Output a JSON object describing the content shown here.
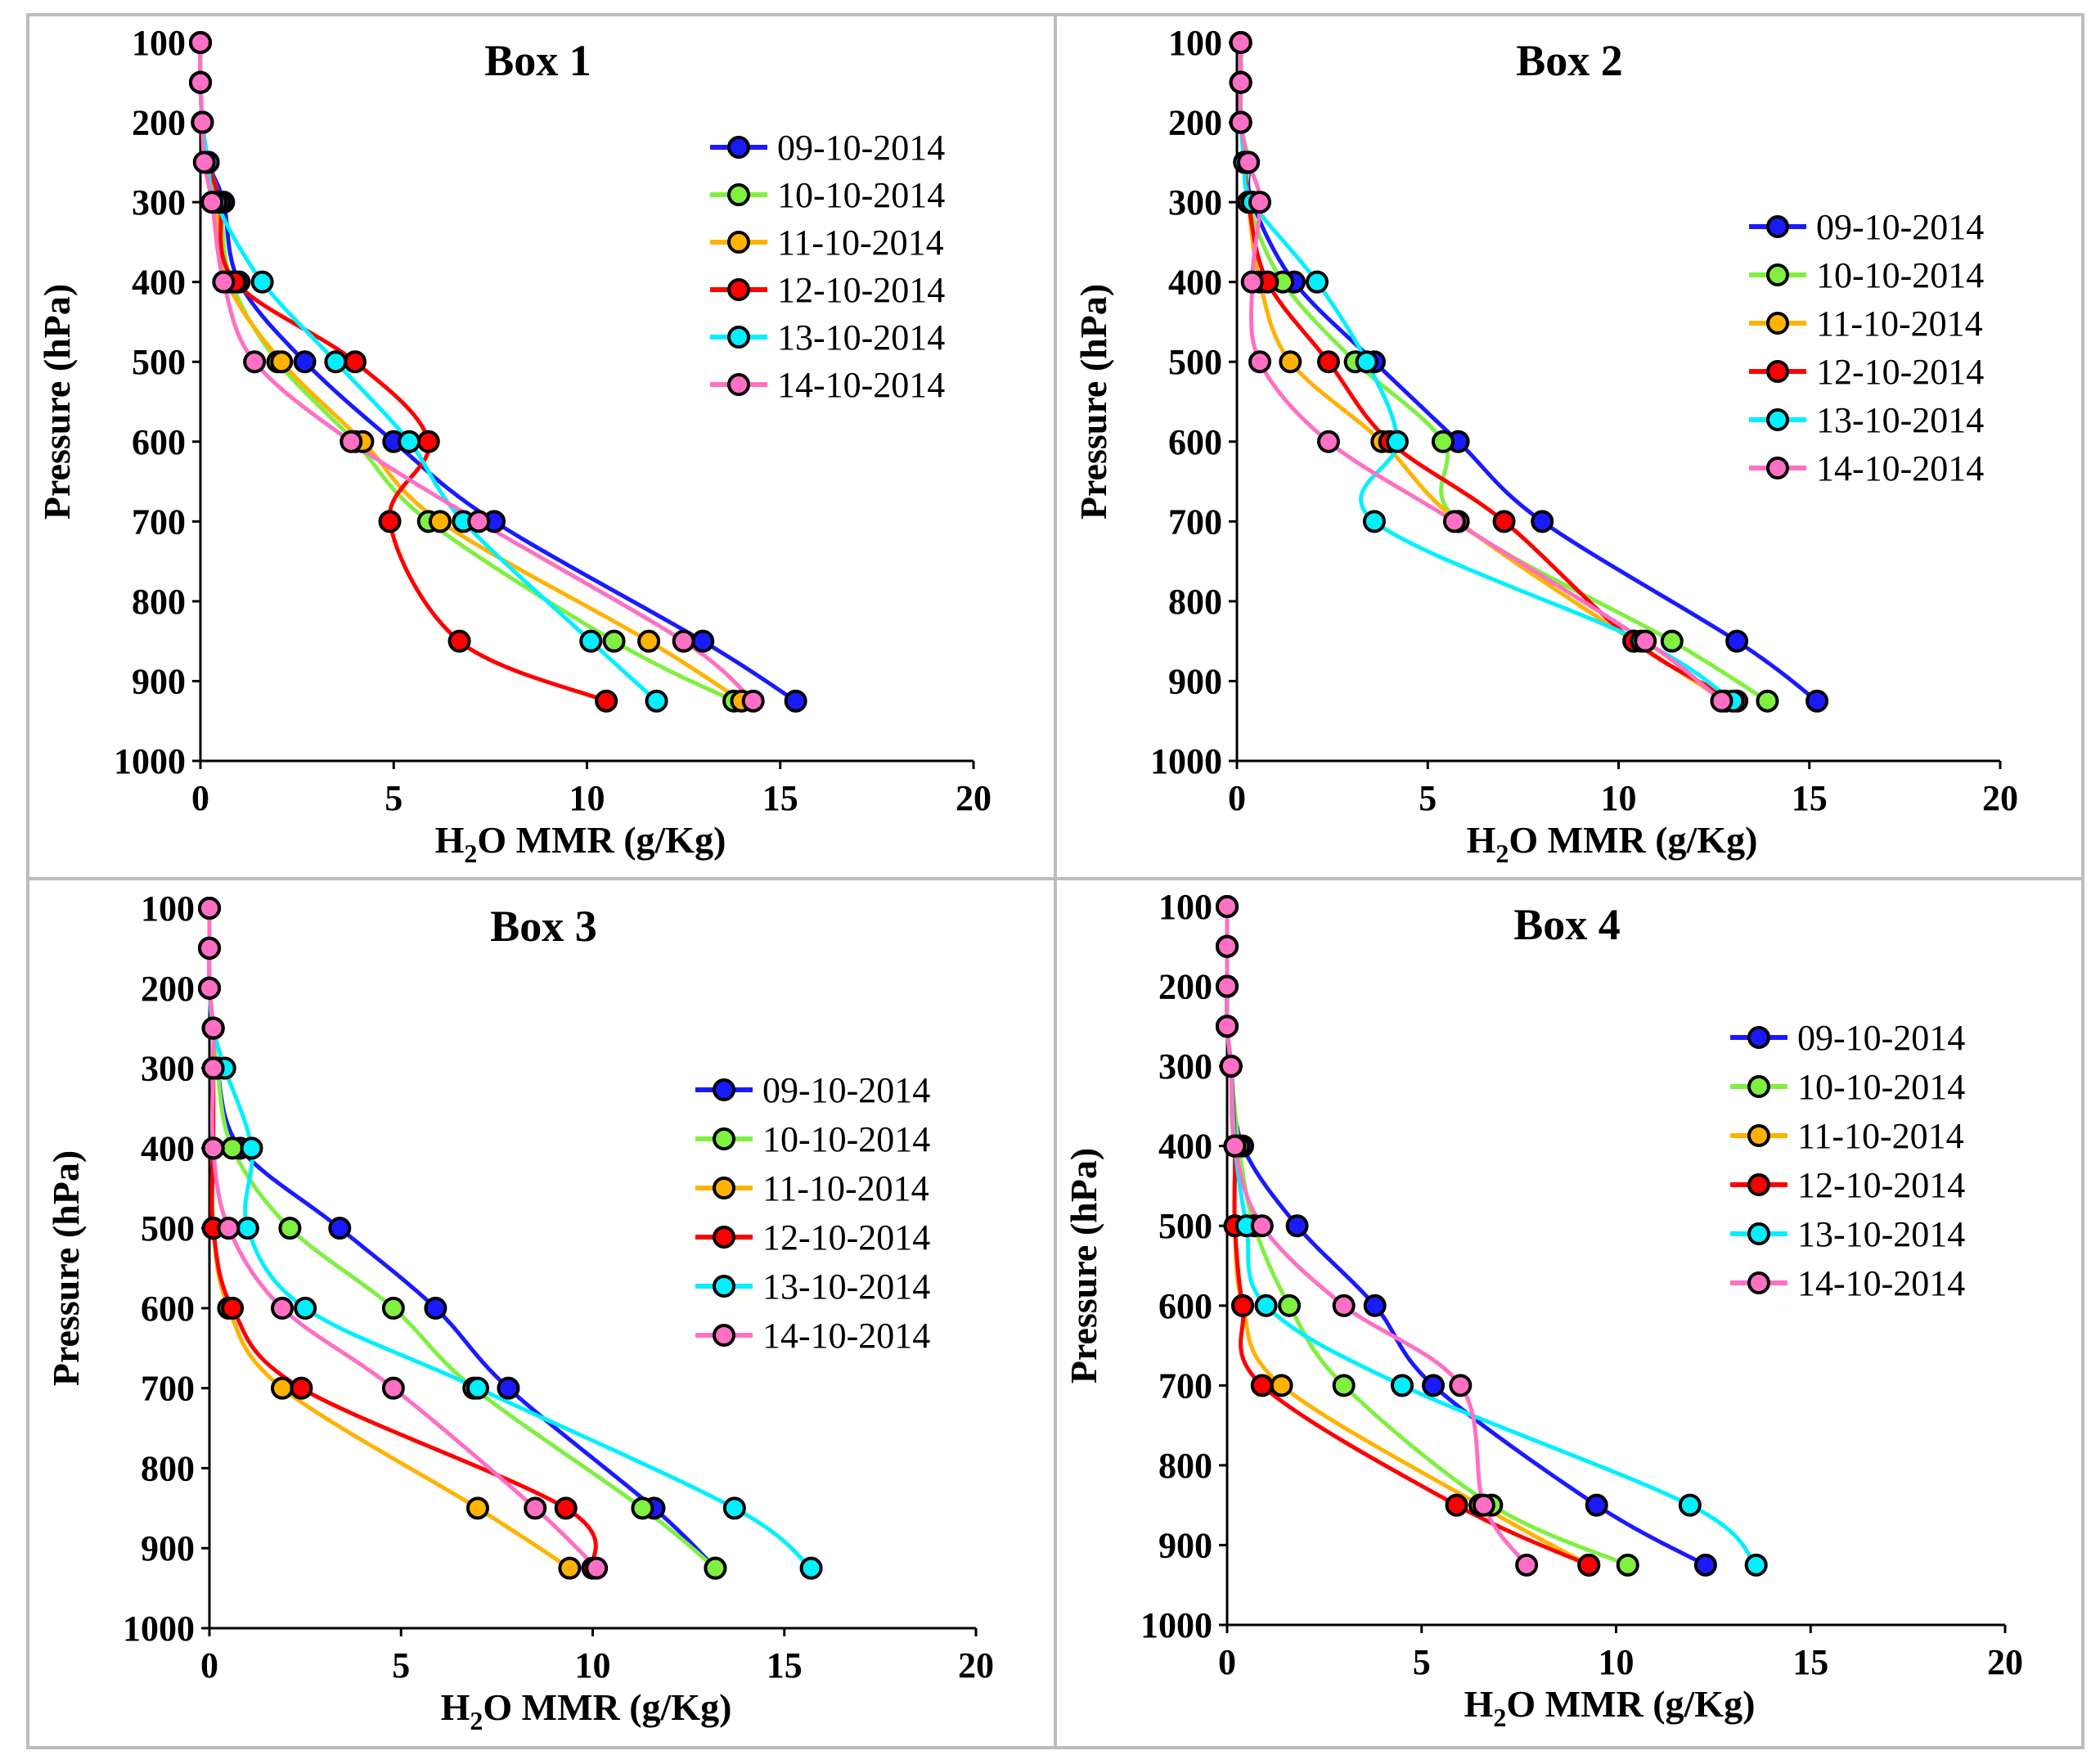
{
  "chart_data": [
    {
      "type": "line",
      "title": "Box 1",
      "xlabel": "H2O MMR (g/Kg)",
      "ylabel": "Pressure (hPa)",
      "xlim": [
        0,
        20
      ],
      "ylim": [
        100,
        1000
      ],
      "y_inverted": true,
      "xticks": [
        "0",
        "5",
        "10",
        "15",
        "20"
      ],
      "yticks": [
        "100",
        "200",
        "300",
        "400",
        "500",
        "600",
        "700",
        "800",
        "900",
        "1000"
      ],
      "legend_position": "top-right",
      "pressure_levels": [
        100,
        150,
        200,
        250,
        300,
        400,
        500,
        600,
        700,
        850,
        925
      ],
      "series": [
        {
          "name": "09-10-2014",
          "color": "#1a1aff",
          "values": [
            0.0,
            0.0,
            0.05,
            0.2,
            0.6,
            1.0,
            2.7,
            5.0,
            7.6,
            13.0,
            15.4
          ]
        },
        {
          "name": "10-10-2014",
          "color": "#7ff040",
          "values": [
            0.0,
            0.0,
            0.05,
            0.2,
            0.5,
            0.8,
            2.0,
            4.0,
            5.9,
            10.7,
            13.8
          ]
        },
        {
          "name": "11-10-2014",
          "color": "#ffb300",
          "values": [
            0.0,
            0.0,
            0.05,
            0.2,
            0.4,
            0.7,
            2.1,
            4.2,
            6.2,
            11.6,
            14.0
          ]
        },
        {
          "name": "12-10-2014",
          "color": "#ff0000",
          "values": [
            0.0,
            0.0,
            0.05,
            0.2,
            0.5,
            0.9,
            4.0,
            5.9,
            4.9,
            6.7,
            10.5
          ]
        },
        {
          "name": "13-10-2014",
          "color": "#00f0ff",
          "values": [
            0.0,
            0.0,
            0.05,
            0.2,
            0.4,
            1.6,
            3.5,
            5.4,
            6.8,
            10.1,
            11.8
          ]
        },
        {
          "name": "14-10-2014",
          "color": "#ff6fc4",
          "values": [
            0.0,
            0.0,
            0.05,
            0.1,
            0.3,
            0.6,
            1.4,
            3.9,
            7.2,
            12.5,
            14.3
          ]
        }
      ]
    },
    {
      "type": "line",
      "title": "Box 2",
      "xlabel": "H2O MMR (g/Kg)",
      "ylabel": "Pressure (hPa)",
      "xlim": [
        0,
        20
      ],
      "ylim": [
        100,
        1000
      ],
      "y_inverted": true,
      "xticks": [
        "0",
        "5",
        "10",
        "15",
        "20"
      ],
      "yticks": [
        "100",
        "200",
        "300",
        "400",
        "500",
        "600",
        "700",
        "800",
        "900",
        "1000"
      ],
      "legend_position": "top-right",
      "pressure_levels": [
        100,
        150,
        200,
        250,
        300,
        400,
        500,
        600,
        700,
        850,
        925
      ],
      "series": [
        {
          "name": "09-10-2014",
          "color": "#1a1aff",
          "values": [
            0.1,
            0.1,
            0.1,
            0.3,
            0.4,
            1.5,
            3.6,
            5.8,
            8.0,
            13.1,
            15.2
          ]
        },
        {
          "name": "10-10-2014",
          "color": "#7ff040",
          "values": [
            0.1,
            0.1,
            0.1,
            0.3,
            0.3,
            1.2,
            3.1,
            5.4,
            5.8,
            11.4,
            13.9
          ]
        },
        {
          "name": "11-10-2014",
          "color": "#ffb300",
          "values": [
            0.1,
            0.1,
            0.1,
            0.2,
            0.3,
            0.6,
            1.4,
            3.8,
            5.8,
            10.4,
            12.8
          ]
        },
        {
          "name": "12-10-2014",
          "color": "#ff0000",
          "values": [
            0.1,
            0.1,
            0.1,
            0.2,
            0.3,
            0.8,
            2.4,
            4.0,
            7.0,
            10.4,
            13.1
          ]
        },
        {
          "name": "13-10-2014",
          "color": "#00f0ff",
          "values": [
            0.1,
            0.1,
            0.1,
            0.2,
            0.4,
            2.1,
            3.4,
            4.2,
            3.6,
            10.6,
            13.0
          ]
        },
        {
          "name": "14-10-2014",
          "color": "#ff6fc4",
          "values": [
            0.1,
            0.1,
            0.1,
            0.3,
            0.6,
            0.4,
            0.6,
            2.4,
            5.7,
            10.7,
            12.7
          ]
        }
      ]
    },
    {
      "type": "line",
      "title": "Box 3",
      "xlabel": "H2O MMR (g/Kg)",
      "ylabel": "Pressure (hPa)",
      "xlim": [
        0,
        20
      ],
      "ylim": [
        100,
        1000
      ],
      "y_inverted": true,
      "xticks": [
        "0",
        "5",
        "10",
        "15",
        "20"
      ],
      "yticks": [
        "100",
        "200",
        "300",
        "400",
        "500",
        "600",
        "700",
        "800",
        "900",
        "1000"
      ],
      "legend_position": "top-right",
      "pressure_levels": [
        100,
        150,
        200,
        250,
        300,
        400,
        500,
        600,
        700,
        850,
        925
      ],
      "series": [
        {
          "name": "09-10-2014",
          "color": "#1a1aff",
          "values": [
            0.0,
            0.0,
            0.0,
            0.1,
            0.2,
            0.8,
            3.4,
            5.9,
            7.8,
            11.6,
            13.2
          ]
        },
        {
          "name": "10-10-2014",
          "color": "#7ff040",
          "values": [
            0.0,
            0.0,
            0.0,
            0.1,
            0.2,
            0.6,
            2.1,
            4.8,
            6.9,
            11.3,
            13.2
          ]
        },
        {
          "name": "11-10-2014",
          "color": "#ffb300",
          "values": [
            0.0,
            0.0,
            0.0,
            0.1,
            0.1,
            0.1,
            0.1,
            0.5,
            1.9,
            7.0,
            9.4
          ]
        },
        {
          "name": "12-10-2014",
          "color": "#ff0000",
          "values": [
            0.0,
            0.0,
            0.0,
            0.1,
            0.1,
            0.1,
            0.1,
            0.6,
            2.4,
            9.3,
            10.0
          ]
        },
        {
          "name": "13-10-2014",
          "color": "#00f0ff",
          "values": [
            0.0,
            0.0,
            0.0,
            0.1,
            0.4,
            1.1,
            1.0,
            2.5,
            7.0,
            13.7,
            15.7
          ]
        },
        {
          "name": "14-10-2014",
          "color": "#ff6fc4",
          "values": [
            0.0,
            0.0,
            0.0,
            0.1,
            0.1,
            0.1,
            0.5,
            1.9,
            4.8,
            8.5,
            10.1
          ]
        }
      ]
    },
    {
      "type": "line",
      "title": "Box 4",
      "xlabel": "H2O MMR (g/Kg)",
      "ylabel": "Pressure (hPa)",
      "xlim": [
        0,
        20
      ],
      "ylim": [
        100,
        1000
      ],
      "y_inverted": true,
      "xticks": [
        "0",
        "5",
        "10",
        "15",
        "20"
      ],
      "yticks": [
        "100",
        "200",
        "300",
        "400",
        "500",
        "600",
        "700",
        "800",
        "900",
        "1000"
      ],
      "legend_position": "top-right",
      "pressure_levels": [
        100,
        150,
        200,
        250,
        300,
        400,
        500,
        600,
        700,
        850,
        925
      ],
      "series": [
        {
          "name": "09-10-2014",
          "color": "#1a1aff",
          "values": [
            0.0,
            0.0,
            0.0,
            0.0,
            0.1,
            0.4,
            1.8,
            3.8,
            5.3,
            9.5,
            12.3
          ]
        },
        {
          "name": "10-10-2014",
          "color": "#7ff040",
          "values": [
            0.0,
            0.0,
            0.0,
            0.0,
            0.1,
            0.3,
            0.7,
            1.6,
            3.0,
            6.8,
            10.3
          ]
        },
        {
          "name": "11-10-2014",
          "color": "#ffb300",
          "values": [
            0.0,
            0.0,
            0.0,
            0.0,
            0.1,
            0.2,
            0.2,
            0.4,
            1.4,
            6.5,
            9.3
          ]
        },
        {
          "name": "12-10-2014",
          "color": "#ff0000",
          "values": [
            0.0,
            0.0,
            0.0,
            0.0,
            0.1,
            0.2,
            0.2,
            0.4,
            0.9,
            5.9,
            9.3
          ]
        },
        {
          "name": "13-10-2014",
          "color": "#00f0ff",
          "values": [
            0.0,
            0.0,
            0.0,
            0.0,
            0.1,
            0.2,
            0.5,
            1.0,
            4.5,
            11.9,
            13.6
          ]
        },
        {
          "name": "14-10-2014",
          "color": "#ff6fc4",
          "values": [
            0.0,
            0.0,
            0.0,
            0.0,
            0.1,
            0.2,
            0.9,
            3.0,
            6.0,
            6.6,
            7.7
          ]
        }
      ]
    }
  ]
}
